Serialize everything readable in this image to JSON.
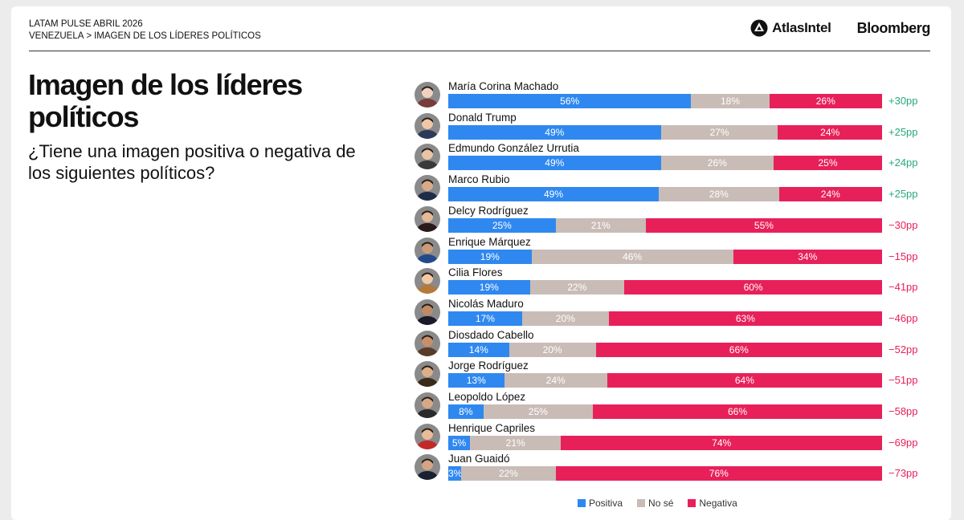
{
  "header": {
    "survey": "LATAM PULSE ABRIL 2026",
    "breadcrumb_country": "VENEZUELA",
    "breadcrumb_sep": ">",
    "breadcrumb_topic": "IMAGEN DE LOS LÍDERES POLÍTICOS",
    "logo_atlas": "AtlasIntel",
    "logo_bloomberg": "Bloomberg"
  },
  "title": "Imagen de los líderes políticos",
  "subtitle": "¿Tiene una imagen positiva o negativa de los siguientes políticos?",
  "colors": {
    "positive": "#2f88f0",
    "neutral": "#c9bcb6",
    "negative": "#e8205a",
    "net_up": "#27a97a",
    "net_down": "#e8205a"
  },
  "chart_data": {
    "type": "bar",
    "orientation": "horizontal-stacked-100",
    "categories": [
      "María Corina Machado",
      "Donald Trump",
      "Edmundo González Urrutia",
      "Marco Rubio",
      "Delcy Rodríguez",
      "Enrique Márquez",
      "Cilia Flores",
      "Nicolás Maduro",
      "Diosdado Cabello",
      "Jorge Rodríguez",
      "Leopoldo López",
      "Henrique Capriles",
      "Juan Guaidó"
    ],
    "series": [
      {
        "name": "Positiva",
        "values": [
          56,
          49,
          49,
          49,
          25,
          19,
          19,
          17,
          14,
          13,
          8,
          5,
          3
        ]
      },
      {
        "name": "No sé",
        "values": [
          18,
          27,
          26,
          28,
          21,
          46,
          22,
          20,
          20,
          24,
          25,
          21,
          22
        ]
      },
      {
        "name": "Negativa",
        "values": [
          26,
          24,
          25,
          24,
          55,
          34,
          60,
          63,
          66,
          64,
          66,
          74,
          76
        ]
      }
    ],
    "net_labels": [
      "+30pp",
      "+25pp",
      "+24pp",
      "+25pp",
      "−30pp",
      "−15pp",
      "−41pp",
      "−46pp",
      "−52pp",
      "−51pp",
      "−58pp",
      "−69pp",
      "−73pp"
    ],
    "legend": [
      "Positiva",
      "No sé",
      "Negativa"
    ],
    "legend_position": "bottom"
  }
}
